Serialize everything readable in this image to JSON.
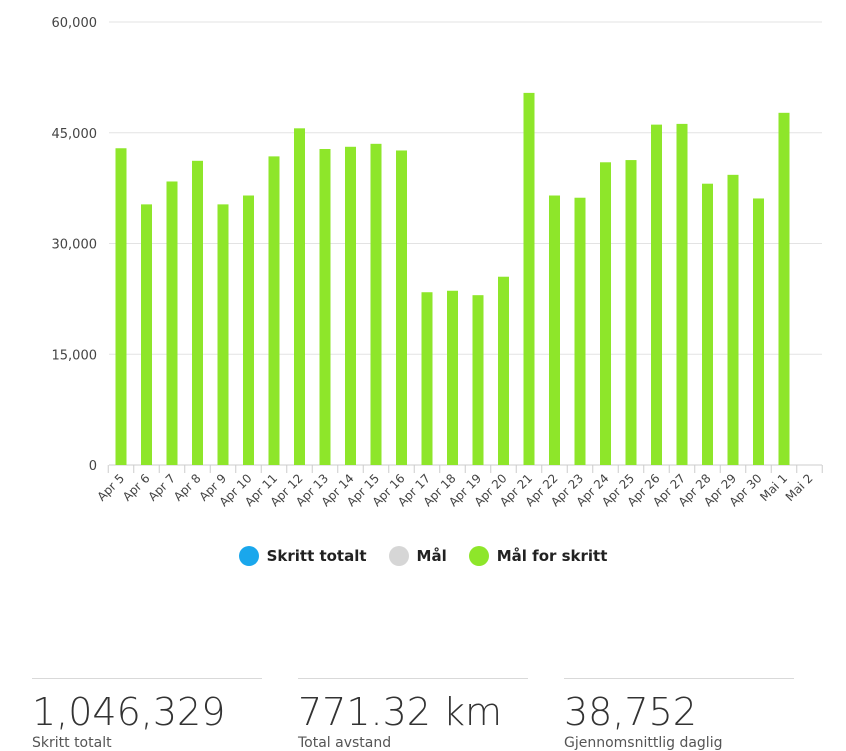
{
  "chart_data": {
    "type": "bar",
    "categories": [
      "Apr 5",
      "Apr 6",
      "Apr 7",
      "Apr 8",
      "Apr 9",
      "Apr 10",
      "Apr 11",
      "Apr 12",
      "Apr 13",
      "Apr 14",
      "Apr 15",
      "Apr 16",
      "Apr 17",
      "Apr 18",
      "Apr 19",
      "Apr 20",
      "Apr 21",
      "Apr 22",
      "Apr 23",
      "Apr 24",
      "Apr 25",
      "Apr 26",
      "Apr 27",
      "Apr 28",
      "Apr 29",
      "Apr 30",
      "Mai 1",
      "Mai 2"
    ],
    "series": [
      {
        "name": "Mål for skritt",
        "color": "#8ee62a",
        "values": [
          42900,
          35300,
          38400,
          41200,
          35300,
          36500,
          41800,
          45600,
          42800,
          43100,
          43500,
          42600,
          23400,
          23600,
          23000,
          25500,
          50400,
          36500,
          36200,
          41000,
          41300,
          46100,
          46200,
          38100,
          39300,
          36100,
          47700,
          null
        ]
      }
    ],
    "ylim": [
      0,
      60000
    ],
    "yticks": [
      0,
      15000,
      30000,
      45000,
      60000
    ],
    "ytick_labels": [
      "0",
      "15,000",
      "30,000",
      "45,000",
      "60,000"
    ],
    "grid": true,
    "legend_position": "bottom-center",
    "legend": [
      {
        "label": "Skritt totalt",
        "color": "#1aa7ec"
      },
      {
        "label": "Mål",
        "color": "#d6d6d6"
      },
      {
        "label": "Mål for skritt",
        "color": "#8ee62a"
      }
    ]
  },
  "stats": [
    {
      "value": "1,046,329",
      "label": "Skritt totalt"
    },
    {
      "value": "771.32 km",
      "label": "Total avstand"
    },
    {
      "value": "38,752",
      "label": "Gjennomsnittlig daglig"
    }
  ]
}
